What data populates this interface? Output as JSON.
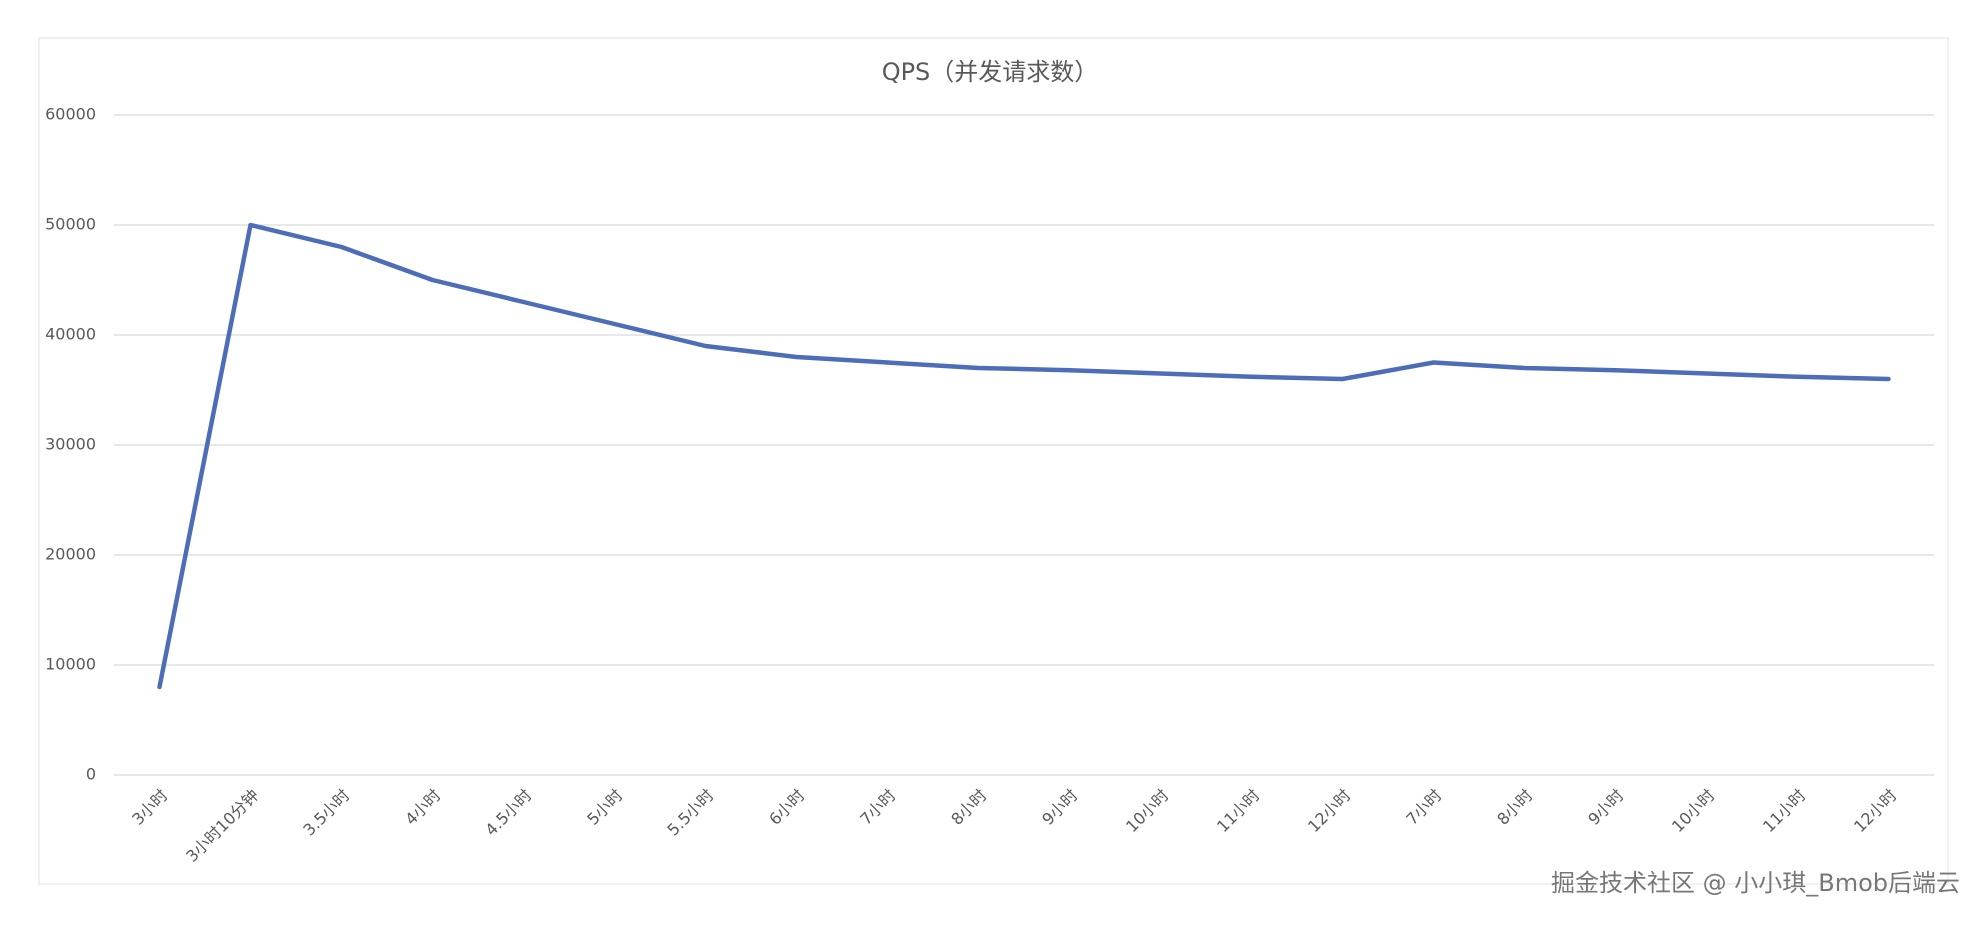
{
  "chart_data": {
    "type": "line",
    "title": "QPS（并发请求数）",
    "categories": [
      "3小时",
      "3小时10分钟",
      "3.5小时",
      "4小时",
      "4.5小时",
      "5小时",
      "5.5小时",
      "6小时",
      "7小时",
      "8小时",
      "9小时",
      "10小时",
      "11小时",
      "12小时",
      "7小时",
      "8小时",
      "9小时",
      "10小时",
      "11小时",
      "12小时"
    ],
    "series": [
      {
        "color": "#4e6db8",
        "values": [
          8000,
          50000,
          48000,
          45000,
          43000,
          41000,
          39000,
          38000,
          37500,
          37000,
          36800,
          36500,
          36200,
          36000,
          37500,
          37000,
          36800,
          36500,
          36200,
          36000
        ]
      }
    ],
    "ylim": [
      0,
      60000
    ],
    "yticks": [
      0,
      10000,
      20000,
      30000,
      40000,
      50000,
      60000
    ],
    "grid": true
  },
  "watermark": "掘金技术社区 @ 小小琪_Bmob后端云"
}
